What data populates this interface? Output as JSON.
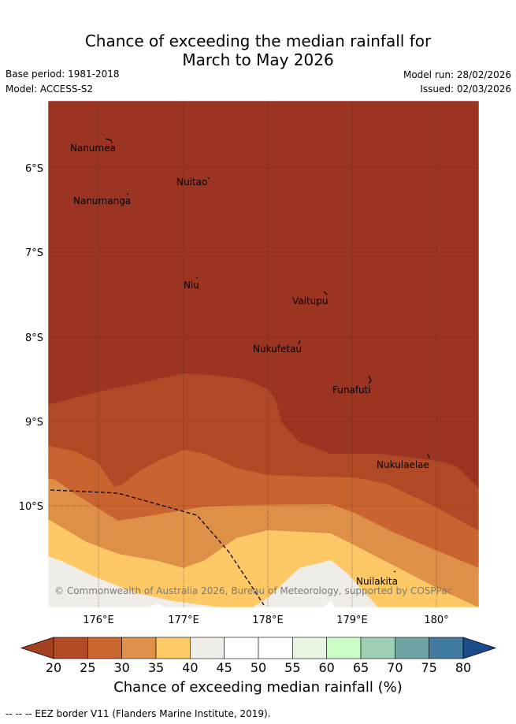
{
  "header": {
    "title_line1": "Chance of exceeding the median rainfall for",
    "title_line2": "March to May 2026",
    "base_period": "Base period: 1981-2018",
    "model": "Model: ACCESS-S2",
    "model_run": "Model run: 28/02/2026",
    "issued": "Issued: 02/03/2026"
  },
  "map": {
    "lat_labels": [
      "6°S",
      "7°S",
      "8°S",
      "9°S",
      "10°S"
    ],
    "lon_labels": [
      "176°E",
      "177°E",
      "178°E",
      "179°E",
      "180°"
    ],
    "places": [
      "Nanumea",
      "Nuitao",
      "Nanumanga",
      "Niu",
      "Vaitupu",
      "Nukufetau",
      "Funafuti",
      "Nukulaelae",
      "Nuilakita"
    ],
    "copyright": "© Commonwealth of Australia 2026, Bureau of Meteorology, supported by COSPPac"
  },
  "colorbar": {
    "ticks": [
      "20",
      "25",
      "30",
      "35",
      "40",
      "45",
      "50",
      "55",
      "60",
      "65",
      "70",
      "75",
      "80"
    ],
    "colors": [
      "#a2401f",
      "#b24a25",
      "#c9652f",
      "#e0924a",
      "#fdca65",
      "#f1ede8",
      "#ffffff",
      "#ffffff",
      "#e9f4e3",
      "#ccfcc6",
      "#9ecfb6",
      "#6ea3a4",
      "#427b9e",
      "#1a4c8c"
    ],
    "title": "Chance of exceeding median rainfall (%)"
  },
  "footer": "-- -- -- EEZ border V11 (Flanders Marine Institute, 2019)."
}
